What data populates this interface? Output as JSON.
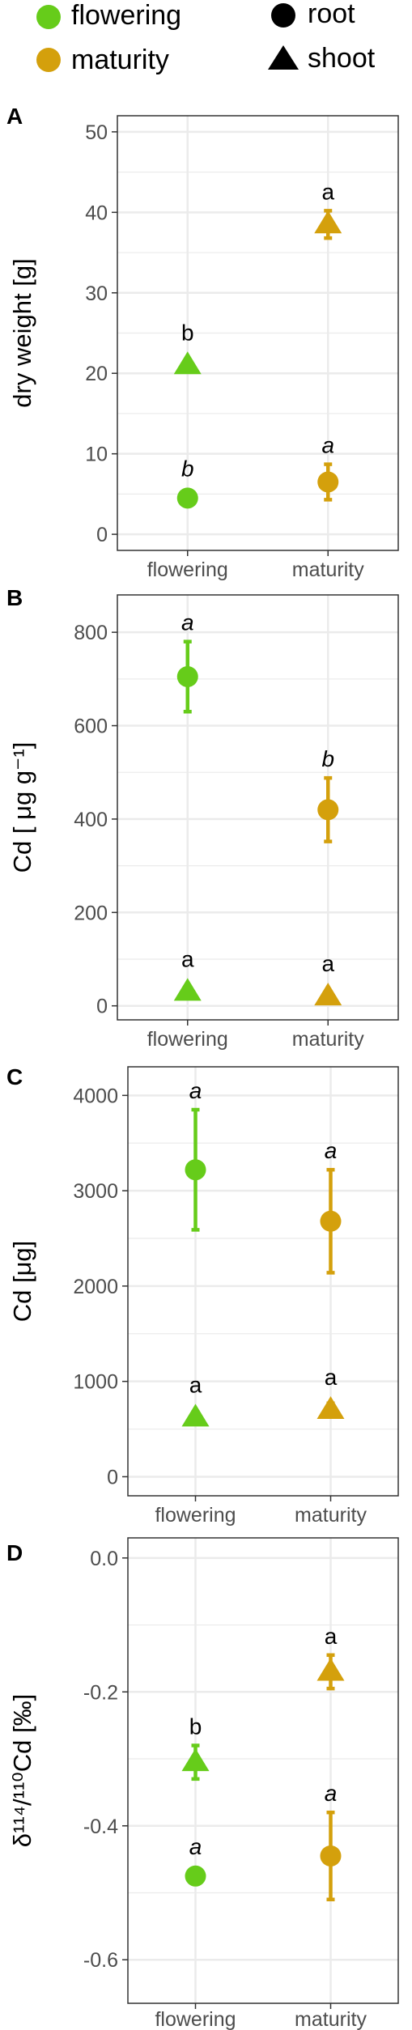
{
  "legend": {
    "stage_items": [
      {
        "label": "flowering",
        "color": "#66cc1a"
      },
      {
        "label": "maturity",
        "color": "#d4a00c"
      }
    ],
    "tissue_items": [
      {
        "label": "root",
        "shape": "circle"
      },
      {
        "label": "shoot",
        "shape": "triangle"
      }
    ]
  },
  "colors": {
    "flowering": "#66cc1a",
    "maturity": "#d4a00c",
    "grid": "#ebebeb",
    "panel_border": "#333333"
  },
  "chart_data": [
    {
      "panel_label": "A",
      "type": "scatter",
      "title": "",
      "xlabel": "",
      "ylabel": "dry weight [g]",
      "categories": [
        "flowering",
        "maturity"
      ],
      "ylim": [
        -2,
        52
      ],
      "yticks": [
        0,
        10,
        20,
        30,
        40,
        50
      ],
      "ytick_labels": [
        "0",
        "10",
        "20",
        "30",
        "40",
        "50"
      ],
      "points": [
        {
          "stage": "flowering",
          "tissue": "root",
          "value": 4.5,
          "error": 0,
          "letter": "b",
          "italic": true
        },
        {
          "stage": "flowering",
          "tissue": "shoot",
          "value": 21,
          "error": 0,
          "letter": "b",
          "italic": false
        },
        {
          "stage": "maturity",
          "tissue": "root",
          "value": 6.5,
          "error": 2.2,
          "letter": "a",
          "italic": true
        },
        {
          "stage": "maturity",
          "tissue": "shoot",
          "value": 38.5,
          "error": 1.7,
          "letter": "a",
          "italic": false
        }
      ]
    },
    {
      "panel_label": "B",
      "type": "scatter",
      "title": "",
      "xlabel": "",
      "ylabel": "Cd [ μg g⁻¹]",
      "categories": [
        "flowering",
        "maturity"
      ],
      "ylim": [
        -30,
        880
      ],
      "yticks": [
        0,
        200,
        400,
        600,
        800
      ],
      "ytick_labels": [
        "0",
        "200",
        "400",
        "600",
        "800"
      ],
      "points": [
        {
          "stage": "flowering",
          "tissue": "root",
          "value": 705,
          "error": 75,
          "letter": "a",
          "italic": true
        },
        {
          "stage": "flowering",
          "tissue": "shoot",
          "value": 30,
          "error": 0,
          "letter": "a",
          "italic": false
        },
        {
          "stage": "maturity",
          "tissue": "root",
          "value": 420,
          "error": 68,
          "letter": "b",
          "italic": true
        },
        {
          "stage": "maturity",
          "tissue": "shoot",
          "value": 20,
          "error": 0,
          "letter": "a",
          "italic": false
        }
      ]
    },
    {
      "panel_label": "C",
      "type": "scatter",
      "title": "",
      "xlabel": "",
      "ylabel": "Cd [μg]",
      "categories": [
        "flowering",
        "maturity"
      ],
      "ylim": [
        -200,
        4300
      ],
      "yticks": [
        0,
        1000,
        2000,
        3000,
        4000
      ],
      "ytick_labels": [
        "0",
        "1000",
        "2000",
        "3000",
        "4000"
      ],
      "points": [
        {
          "stage": "flowering",
          "tissue": "root",
          "value": 3220,
          "error": 630,
          "letter": "a",
          "italic": true
        },
        {
          "stage": "flowering",
          "tissue": "shoot",
          "value": 620,
          "error": 60,
          "letter": "a",
          "italic": false
        },
        {
          "stage": "maturity",
          "tissue": "root",
          "value": 2680,
          "error": 540,
          "letter": "a",
          "italic": true
        },
        {
          "stage": "maturity",
          "tissue": "shoot",
          "value": 700,
          "error": 70,
          "letter": "a",
          "italic": false
        }
      ]
    },
    {
      "panel_label": "D",
      "type": "scatter",
      "title": "",
      "xlabel": "",
      "ylabel": "δ¹¹⁴/¹¹⁰Cd [‰]",
      "categories": [
        "flowering",
        "maturity"
      ],
      "ylim": [
        -0.665,
        0.03
      ],
      "yticks": [
        0.0,
        -0.2,
        -0.4,
        -0.6
      ],
      "ytick_labels": [
        "0.0",
        "-0.2",
        "-0.4",
        "-0.6"
      ],
      "points": [
        {
          "stage": "flowering",
          "tissue": "root",
          "value": -0.475,
          "error": 0.005,
          "letter": "a",
          "italic": true
        },
        {
          "stage": "flowering",
          "tissue": "shoot",
          "value": -0.305,
          "error": 0.025,
          "letter": "b",
          "italic": false
        },
        {
          "stage": "maturity",
          "tissue": "root",
          "value": -0.445,
          "error": 0.065,
          "letter": "a",
          "italic": true
        },
        {
          "stage": "maturity",
          "tissue": "shoot",
          "value": -0.17,
          "error": 0.025,
          "letter": "a",
          "italic": false
        }
      ]
    }
  ]
}
